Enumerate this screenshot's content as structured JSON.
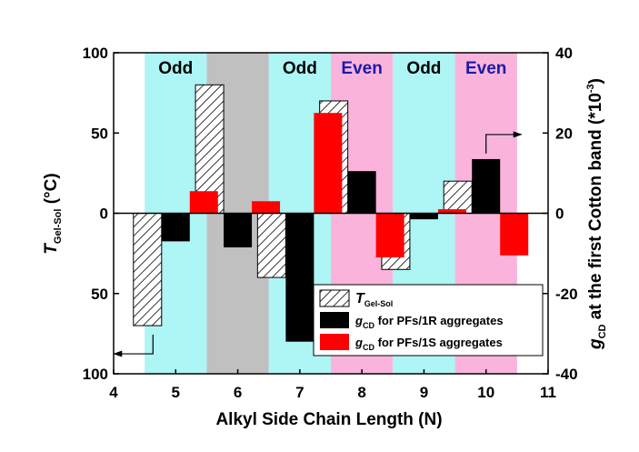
{
  "chart_data": {
    "type": "bar",
    "x": [
      5,
      6,
      7,
      8,
      9,
      10
    ],
    "xlabel": "Alkyl Side Chain Length (N)",
    "xlim": [
      4,
      11
    ],
    "x_ticks": [
      "4",
      "5",
      "6",
      "7",
      "8",
      "9",
      "10",
      "11"
    ],
    "ylabel_left": {
      "main": "T",
      "sub": "Gel-Sol",
      "rest": " (°C)"
    },
    "ylim_left": [
      -100,
      100
    ],
    "y_ticks_left": [
      "100",
      "50",
      "0",
      "50",
      "100"
    ],
    "y_tick_values_left": [
      100,
      50,
      0,
      -50,
      -100
    ],
    "ylabel_right": {
      "main": "g",
      "sub": "CD",
      "rest": " at the first Cotton band (*10",
      "sup": "-3",
      "close": ")"
    },
    "ylim_right": [
      -40,
      40
    ],
    "y_ticks_right": [
      "40",
      "20",
      "0",
      "-20",
      "-40"
    ],
    "y_tick_values_right": [
      40,
      20,
      0,
      -20,
      -40
    ],
    "bands": [
      {
        "x_range": [
          4.5,
          5.5
        ],
        "color": "#aef5f5",
        "label": "Odd",
        "label_color": "#000000"
      },
      {
        "x_range": [
          5.5,
          6.5
        ],
        "color": "#c0c0c0",
        "label": "",
        "label_color": "#000000"
      },
      {
        "x_range": [
          6.5,
          7.5
        ],
        "color": "#aef5f5",
        "label": "Odd",
        "label_color": "#000000"
      },
      {
        "x_range": [
          7.5,
          8.5
        ],
        "color": "#fab4dc",
        "label": "Even",
        "label_color": "#1a1aa8"
      },
      {
        "x_range": [
          8.5,
          9.5
        ],
        "color": "#aef5f5",
        "label": "Odd",
        "label_color": "#000000"
      },
      {
        "x_range": [
          9.5,
          10.5
        ],
        "color": "#fab4dc",
        "label": "Even",
        "label_color": "#1a1aa8"
      }
    ],
    "series": [
      {
        "name": "T",
        "name_sub": "Gel-Sol",
        "name_rest": "",
        "axis": "left",
        "style": "hatch",
        "color": "#000000",
        "values": [
          -70,
          80,
          -40,
          70,
          -35,
          20
        ]
      },
      {
        "name": "g",
        "name_sub": "CD",
        "name_rest": " for PFs/1R aggregates",
        "axis": "right",
        "style": "solid",
        "color": "#000000",
        "values": [
          -7,
          -8.5,
          -32,
          10.5,
          -1.5,
          13.5
        ]
      },
      {
        "name": "g",
        "name_sub": "CD",
        "name_rest": " for PFs/1S aggregates",
        "axis": "right",
        "style": "solid",
        "color": "#ff0000",
        "values": [
          5.5,
          3,
          25,
          -11,
          1,
          -10.5
        ]
      }
    ],
    "legend_position": "lower-right",
    "annotations": [
      {
        "type": "arrow",
        "direction": "left",
        "at_x": 5,
        "series": "T"
      },
      {
        "type": "arrow",
        "direction": "right",
        "at_x": 10,
        "series": "gCD 1R"
      }
    ]
  }
}
